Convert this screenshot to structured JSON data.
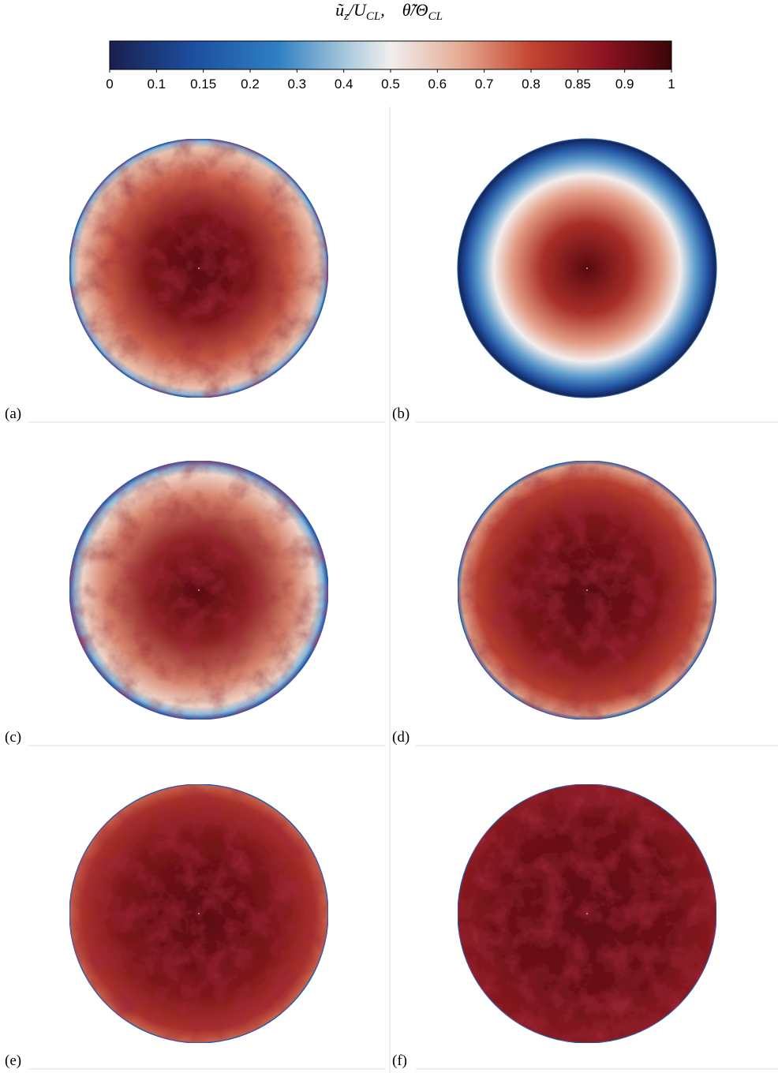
{
  "colorbar": {
    "title": [
      "ũ",
      "z",
      "/U",
      "CL",
      ",    θ̃/Θ",
      "CL"
    ],
    "ticks": [
      "0",
      "0.1",
      "0.15",
      "0.2",
      "0.3",
      "0.4",
      "0.5",
      "0.6",
      "0.7",
      "0.8",
      "0.85",
      "0.9",
      "1"
    ]
  },
  "panels": [
    {
      "label": "(a)"
    },
    {
      "label": "(b)"
    },
    {
      "label": "(c)"
    },
    {
      "label": "(d)"
    },
    {
      "label": "(e)"
    },
    {
      "label": "(f)"
    }
  ]
}
